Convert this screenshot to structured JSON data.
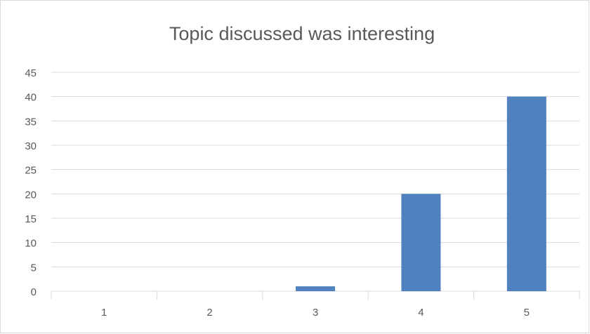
{
  "chart_data": {
    "type": "bar",
    "title": "Topic discussed was interesting",
    "categories": [
      "1",
      "2",
      "3",
      "4",
      "5"
    ],
    "values": [
      0,
      0,
      1,
      20,
      40
    ],
    "color": "#4e81bd",
    "ylim": [
      0,
      45
    ],
    "yticks": [
      0,
      5,
      10,
      15,
      20,
      25,
      30,
      35,
      40,
      45
    ],
    "grid": true
  }
}
